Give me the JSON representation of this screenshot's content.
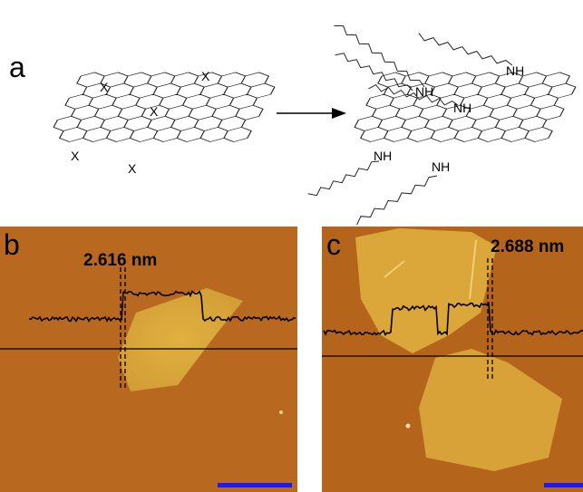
{
  "panels": [
    {
      "label": "a",
      "reactant_groups": [
        "X",
        "X",
        "X",
        "X",
        "X"
      ],
      "product_groups": [
        "NH",
        "NH",
        "NH",
        "NH",
        "NH"
      ]
    },
    {
      "label": "b",
      "annotation": "2.616 nm"
    },
    {
      "label": "c",
      "annotation": "2.688 nm"
    }
  ]
}
